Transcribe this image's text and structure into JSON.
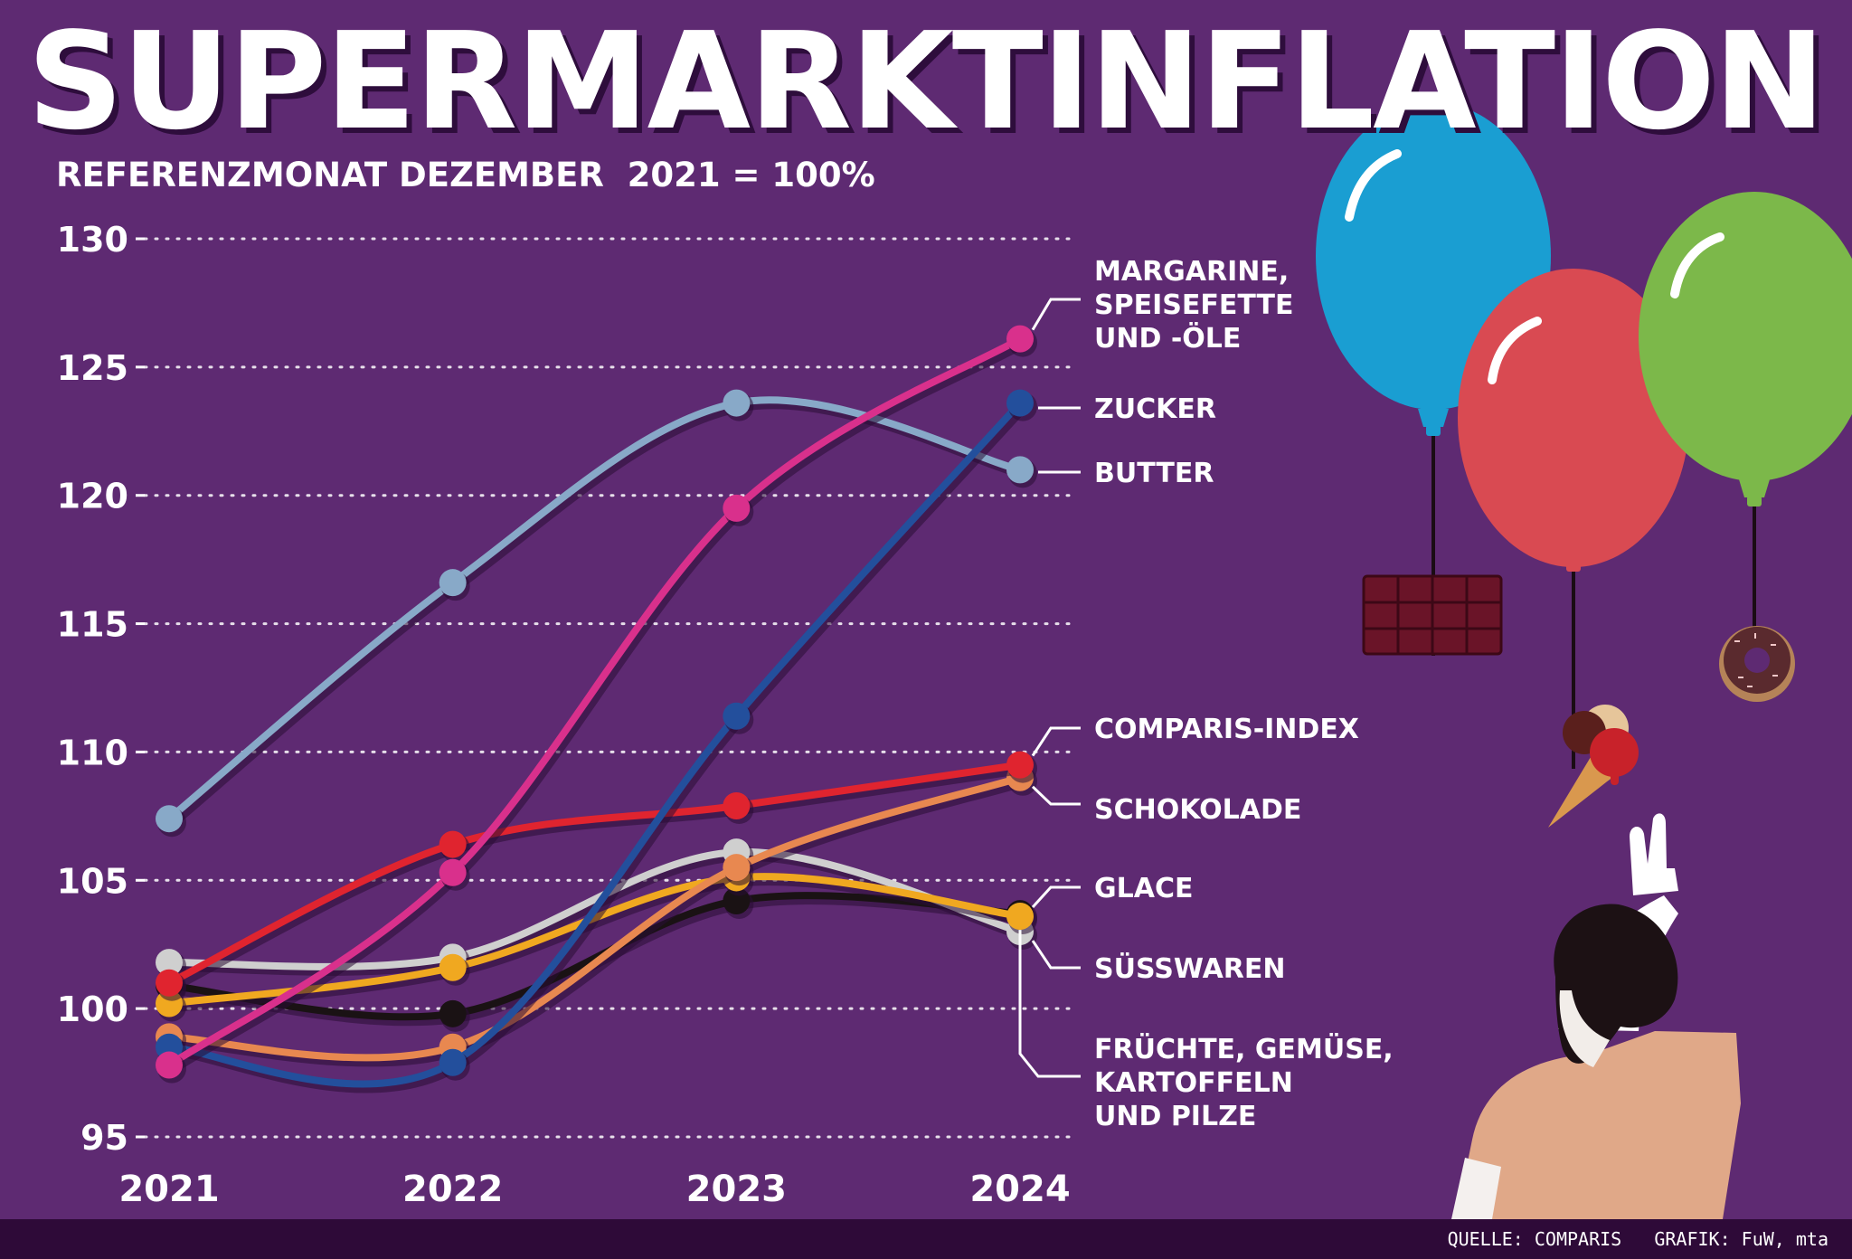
{
  "header": {
    "title": "SUPERMARKTINFLATION",
    "subtitle": "REFERENZMONAT DEZEMBER  2021 = 100%"
  },
  "footer": {
    "source": "QUELLE: COMPARIS   GRAFIK: FuW, mta"
  },
  "colors": {
    "background": "#5e2a72",
    "footer": "#2e0a38",
    "grid": "#ffffff"
  },
  "chart_data": {
    "type": "line",
    "x": [
      "2021",
      "2022",
      "2023",
      "2024"
    ],
    "ylim": [
      95,
      130
    ],
    "yticks": [
      95,
      100,
      105,
      110,
      115,
      120,
      125,
      130
    ],
    "grid": "dotted horizontal",
    "series": [
      {
        "name": "MARGARINE, SPEISEFETTE UND -ÖLE",
        "label_lines": [
          "MARGARINE,",
          "SPEISEFETTE",
          "UND -ÖLE"
        ],
        "color": "#d9308c",
        "values": [
          97.8,
          105.3,
          119.5,
          126.1
        ]
      },
      {
        "name": "ZUCKER",
        "label_lines": [
          "ZUCKER"
        ],
        "color": "#234f9c",
        "values": [
          98.5,
          97.9,
          111.4,
          123.6
        ]
      },
      {
        "name": "BUTTER",
        "label_lines": [
          "BUTTER"
        ],
        "color": "#88a9c8",
        "values": [
          107.4,
          116.6,
          123.6,
          121.0
        ]
      },
      {
        "name": "COMPARIS-INDEX",
        "label_lines": [
          "COMPARIS-INDEX"
        ],
        "color": "#e0242f",
        "values": [
          101.0,
          106.4,
          107.9,
          109.5
        ]
      },
      {
        "name": "SCHOKOLADE",
        "label_lines": [
          "SCHOKOLADE"
        ],
        "color": "#e88850",
        "values": [
          98.9,
          98.5,
          105.5,
          109.0
        ]
      },
      {
        "name": "GLACE",
        "label_lines": [
          "GLACE"
        ],
        "color": "#f0a820",
        "values": [
          100.2,
          101.6,
          105.1,
          103.6
        ]
      },
      {
        "name": "SÜSSWAREN",
        "label_lines": [
          "SÜSSWAREN"
        ],
        "color": "#cfcfcf",
        "values": [
          101.8,
          102.0,
          106.1,
          103.0
        ]
      },
      {
        "name": "FRÜCHTE, GEMÜSE, KARTOFFELN UND PILZE",
        "label_lines": [
          "FRÜCHTE, GEMÜSE,",
          "KARTOFFELN",
          "UND PILZE"
        ],
        "color": "#1a1214",
        "values": [
          100.9,
          99.8,
          104.2,
          103.7
        ]
      }
    ]
  }
}
